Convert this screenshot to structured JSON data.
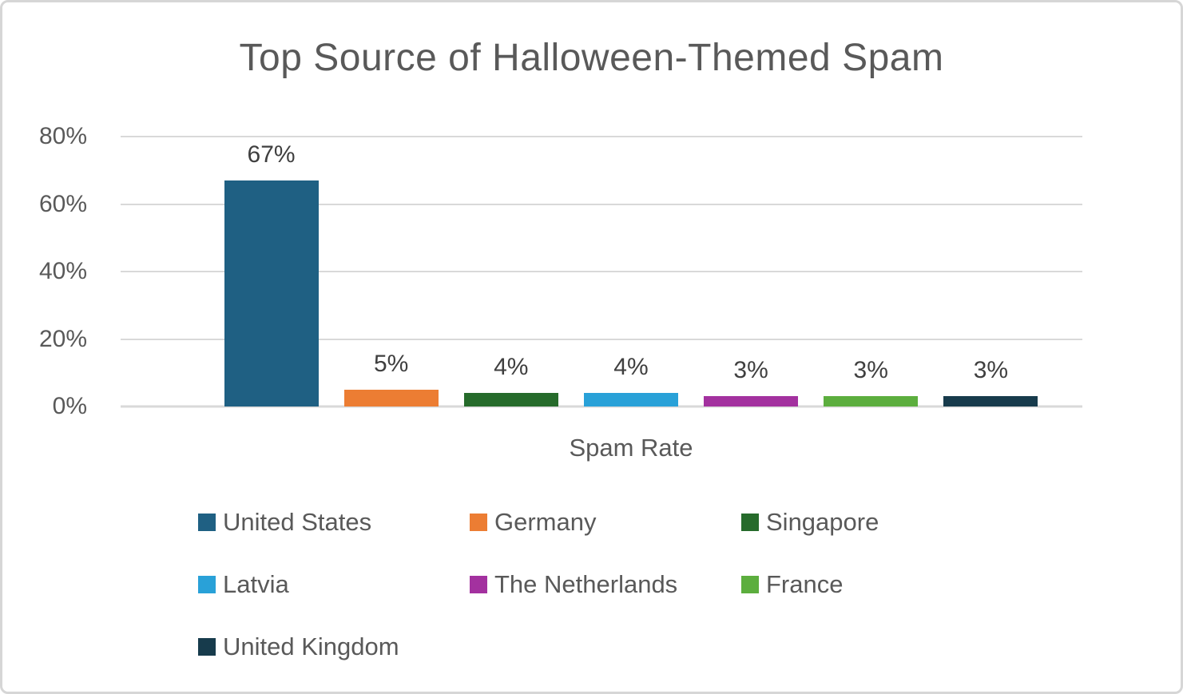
{
  "panel": {
    "background": "#ffffff",
    "border_color": "#d6d6d6"
  },
  "chart_data": {
    "type": "bar",
    "title": "Top Source of Halloween-Themed Spam",
    "xlabel": "Spam Rate",
    "ylabel": "",
    "ylim": [
      0,
      80
    ],
    "grid": true,
    "legend_position": "bottom",
    "categories": [
      "United States",
      "Germany",
      "Singapore",
      "Latvia",
      "The Netherlands",
      "France",
      "United Kingdom"
    ],
    "values": [
      67,
      5,
      4,
      4,
      3,
      3,
      3
    ],
    "value_labels": [
      "67%",
      "5%",
      "4%",
      "4%",
      "3%",
      "3%",
      "3%"
    ],
    "bar_colors": [
      "#1f6083",
      "#ec7d33",
      "#266b2b",
      "#29a1d8",
      "#a3319f",
      "#5cae3e",
      "#173b4c"
    ],
    "yticks": [
      {
        "value": 0,
        "label": "0%"
      },
      {
        "value": 20,
        "label": "20%"
      },
      {
        "value": 40,
        "label": "40%"
      },
      {
        "value": 60,
        "label": "60%"
      },
      {
        "value": 80,
        "label": "80%"
      }
    ],
    "colors": {
      "title_text": "#595959",
      "axis_text": "#595959",
      "data_label_text": "#3f3f3f",
      "gridline": "#d9d9d9"
    }
  }
}
